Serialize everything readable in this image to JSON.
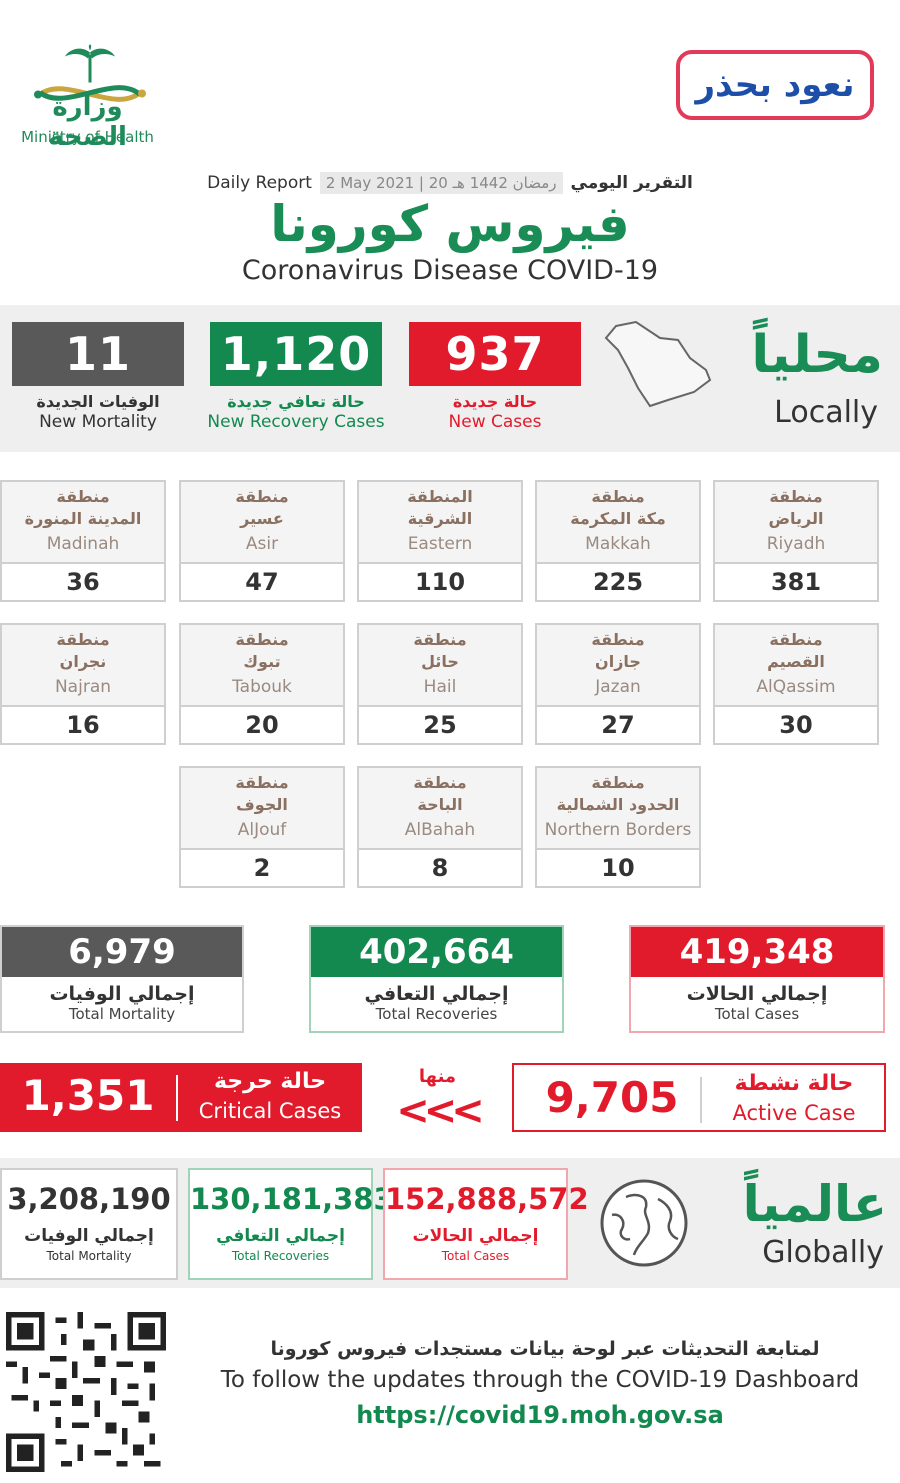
{
  "header": {
    "ministry_ar": "وزارة الصحة",
    "ministry_en": "Ministry of Health",
    "slogan_ar": "نعود بحذر",
    "daily_report_en": "Daily Report",
    "date": "2 May 2021 | 20 رمضان 1442 هـ",
    "daily_report_ar": "التقرير اليومي",
    "title_ar": "فيروس كورونا",
    "title_en": "Coronavirus Disease COVID-19"
  },
  "local": {
    "label_ar": "محلياً",
    "label_en": "Locally",
    "new_cases": {
      "value": "937",
      "ar": "حالة جديدة",
      "en": "New Cases"
    },
    "new_recovery": {
      "value": "1,120",
      "ar": "حالة تعافي جديدة",
      "en": "New Recovery Cases"
    },
    "new_mortality": {
      "value": "11",
      "ar": "الوفيات الجديدة",
      "en": "New Mortality"
    }
  },
  "regions": {
    "word_ar": "منطقة",
    "items": [
      {
        "ar": "الرياض",
        "en": "Riyadh",
        "value": "381"
      },
      {
        "ar": "مكة المكرمة",
        "en": "Makkah",
        "value": "225"
      },
      {
        "ar": "الشرقية",
        "en": "Eastern",
        "value": "110",
        "word_ar": "المنطقة"
      },
      {
        "ar": "عسير",
        "en": "Asir",
        "value": "47"
      },
      {
        "ar": "المدينة المنورة",
        "en": "Madinah",
        "value": "36"
      },
      {
        "ar": "القصيم",
        "en": "AlQassim",
        "value": "30"
      },
      {
        "ar": "جازان",
        "en": "Jazan",
        "value": "27"
      },
      {
        "ar": "حائل",
        "en": "Hail",
        "value": "25"
      },
      {
        "ar": "تبوك",
        "en": "Tabouk",
        "value": "20"
      },
      {
        "ar": "نجران",
        "en": "Najran",
        "value": "16"
      },
      {
        "ar": "الحدود الشمالية",
        "en": "Northern Borders",
        "value": "10"
      },
      {
        "ar": "الباحة",
        "en": "AlBahah",
        "value": "8"
      },
      {
        "ar": "الجوف",
        "en": "AlJouf",
        "value": "2"
      }
    ]
  },
  "totals": {
    "cases": {
      "value": "419,348",
      "ar": "إجمالي الحالات",
      "en": "Total Cases"
    },
    "recoveries": {
      "value": "402,664",
      "ar": "إجمالي التعافي",
      "en": "Total Recoveries"
    },
    "mortality": {
      "value": "6,979",
      "ar": "إجمالي الوفيات",
      "en": "Total Mortality"
    }
  },
  "active": {
    "value": "9,705",
    "ar": "حالة نشطة",
    "en": "Active Case"
  },
  "of_them_ar": "منها",
  "chevrons": "<<<",
  "critical": {
    "value": "1,351",
    "ar": "حالة حرجة",
    "en": "Critical Cases"
  },
  "global": {
    "label_ar": "عالمياً",
    "label_en": "Globally",
    "cases": {
      "value": "152,888,572",
      "ar": "إجمالي الحالات",
      "en": "Total Cases"
    },
    "recoveries": {
      "value": "130,181,383",
      "ar": "إجمالي التعافي",
      "en": "Total Recoveries"
    },
    "mortality": {
      "value": "3,208,190",
      "ar": "إجمالي الوفيات",
      "en": "Total Mortality"
    }
  },
  "footer": {
    "text_ar": "لمتابعة التحديثات عبر لوحة بيانات مستجدات فيروس كورونا",
    "text_en": "To follow the updates through the COVID-19 Dashboard",
    "url": "https://covid19.moh.gov.sa"
  },
  "colors": {
    "red": "#e21b2c",
    "green": "#13894f",
    "gray": "#595959"
  },
  "icons": [
    "moh-logo-icon",
    "saudi-map-icon",
    "globe-icon",
    "qr-code-icon"
  ]
}
